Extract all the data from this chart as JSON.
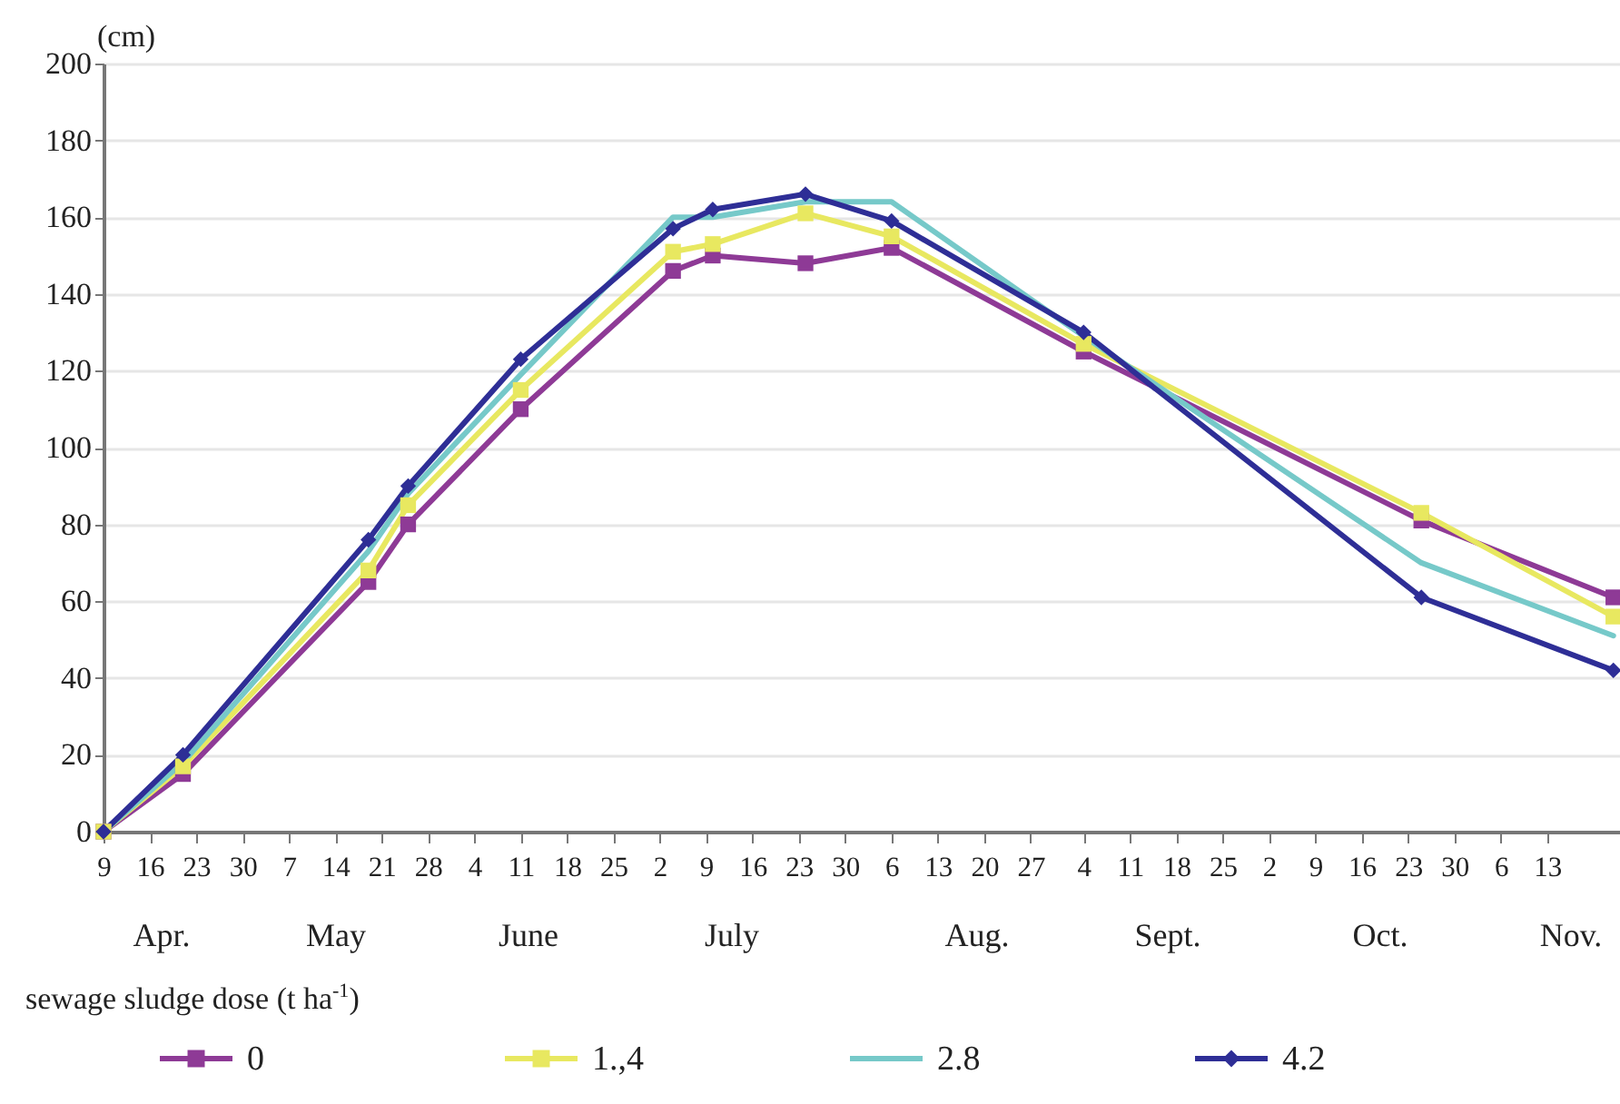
{
  "chart_data": {
    "type": "line",
    "ylabel": "(cm)",
    "legend_title": "sewage sludge dose (t ha$^{-1}$)",
    "legend": "bottom",
    "grid": "y",
    "x": [
      "--04-09",
      "--04-21",
      "--05-19",
      "--05-25",
      "--06-11",
      "--07-04",
      "--07-10",
      "--07-24",
      "--08-06",
      "--09-04",
      "--10-25",
      "--11-23"
    ],
    "xlim": [
      "--04-09",
      "--11-24"
    ],
    "xticks": [
      {
        "value": "--04-09",
        "label": "9"
      },
      {
        "value": "--04-16",
        "label": "16"
      },
      {
        "value": "--04-23",
        "label": "23"
      },
      {
        "value": "--04-30",
        "label": "30"
      },
      {
        "value": "--05-07",
        "label": "7"
      },
      {
        "value": "--05-14",
        "label": "14"
      },
      {
        "value": "--05-21",
        "label": "21"
      },
      {
        "value": "--05-28",
        "label": "28"
      },
      {
        "value": "--06-04",
        "label": "4"
      },
      {
        "value": "--06-11",
        "label": "11"
      },
      {
        "value": "--06-18",
        "label": "18"
      },
      {
        "value": "--06-25",
        "label": "25"
      },
      {
        "value": "--07-02",
        "label": "2"
      },
      {
        "value": "--07-09",
        "label": "9"
      },
      {
        "value": "--07-16",
        "label": "16"
      },
      {
        "value": "--07-23",
        "label": "23"
      },
      {
        "value": "--07-30",
        "label": "30"
      },
      {
        "value": "--08-06",
        "label": "6"
      },
      {
        "value": "--08-13",
        "label": "13"
      },
      {
        "value": "--08-20",
        "label": "20"
      },
      {
        "value": "--08-27",
        "label": "27"
      },
      {
        "value": "--09-04",
        "label": "4"
      },
      {
        "value": "--09-11",
        "label": "11"
      },
      {
        "value": "--09-18",
        "label": "18"
      },
      {
        "value": "--09-25",
        "label": "25"
      },
      {
        "value": "--10-02",
        "label": "2"
      },
      {
        "value": "--10-09",
        "label": "9"
      },
      {
        "value": "--10-16",
        "label": "16"
      },
      {
        "value": "--10-23",
        "label": "23"
      },
      {
        "value": "--10-30",
        "label": "30"
      },
      {
        "value": "--11-06",
        "label": "6"
      },
      {
        "value": "--11-13",
        "label": "13"
      }
    ],
    "ylim": [
      0,
      200
    ],
    "yticks": [
      0,
      20,
      40,
      60,
      80,
      100,
      120,
      140,
      160,
      180,
      200
    ],
    "annotations": [
      "Apr.",
      "May",
      "June",
      "July",
      "Aug.",
      "Sept.",
      "Oct.",
      "Nov."
    ],
    "series": [
      {
        "name": "0",
        "color": "#8e3a96",
        "marker": "square",
        "values": [
          0,
          15,
          65,
          80,
          110,
          146,
          150,
          148,
          152,
          125,
          81,
          61
        ]
      },
      {
        "name": "1.,4",
        "color": "#e8e860",
        "marker": "square",
        "values": [
          0,
          17,
          68,
          85,
          115,
          151,
          153,
          161,
          155,
          127,
          83,
          56
        ]
      },
      {
        "name": "2.8",
        "color": "#76c9c9",
        "marker": "none",
        "values": [
          0,
          18,
          73,
          88,
          119,
          160,
          160,
          164,
          164,
          129,
          70,
          51
        ]
      },
      {
        "name": "4.2",
        "color": "#2e2e96",
        "marker": "diamond",
        "values": [
          0,
          20,
          76,
          90,
          123,
          157,
          162,
          166,
          159,
          130,
          61,
          42
        ]
      }
    ]
  }
}
